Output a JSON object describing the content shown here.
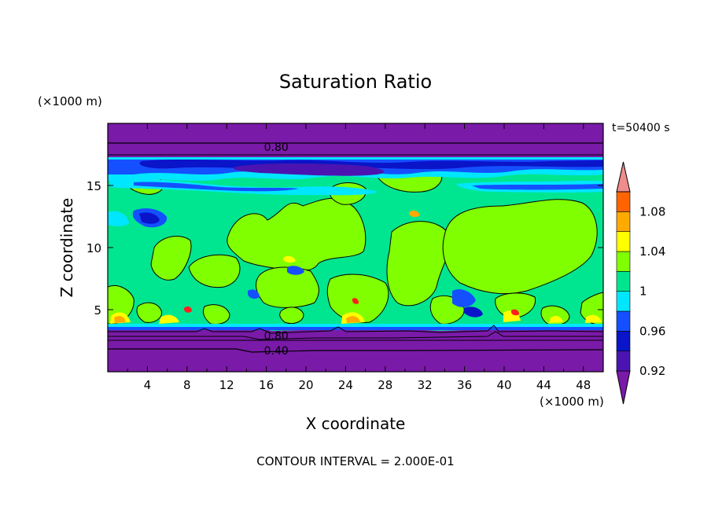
{
  "chart_data": {
    "type": "heatmap",
    "title": "Saturation Ratio",
    "xlabel": "X coordinate",
    "ylabel": "Z coordinate",
    "x_unit": "(×1000 m)",
    "y_unit": "(×1000 m)",
    "time_label": "t=50400 s",
    "footer": "CONTOUR INTERVAL = 2.000E-01",
    "xlim": [
      0,
      50
    ],
    "ylim": [
      0,
      20
    ],
    "x_ticks": [
      4,
      8,
      12,
      16,
      20,
      24,
      28,
      32,
      36,
      40,
      44,
      48
    ],
    "y_ticks": [
      5,
      10,
      15
    ],
    "contour_labels": [
      {
        "text": "0.80",
        "x": 17,
        "z": 18.1
      },
      {
        "text": "0.80",
        "x": 17,
        "z": 2.9
      },
      {
        "text": "0.40",
        "x": 17,
        "z": 1.7
      }
    ],
    "colorbar": {
      "levels": [
        0.92,
        0.94,
        0.96,
        0.98,
        1.0,
        1.02,
        1.04,
        1.06,
        1.08,
        1.1
      ],
      "tick_labels": [
        {
          "label": "1.08",
          "level": 1.08
        },
        {
          "label": "1.04",
          "level": 1.04
        },
        {
          "label": "1",
          "level": 1.0
        },
        {
          "label": "0.96",
          "level": 0.96
        },
        {
          "label": "0.92",
          "level": 0.92
        }
      ],
      "colors": [
        "#7a1aa8",
        "#4b14b0",
        "#0a14c8",
        "#1450ff",
        "#00e6ff",
        "#00e690",
        "#80ff00",
        "#ffff00",
        "#ffaa00",
        "#ff6400",
        "#ff1e1e",
        "#f08c8c"
      ]
    }
  }
}
